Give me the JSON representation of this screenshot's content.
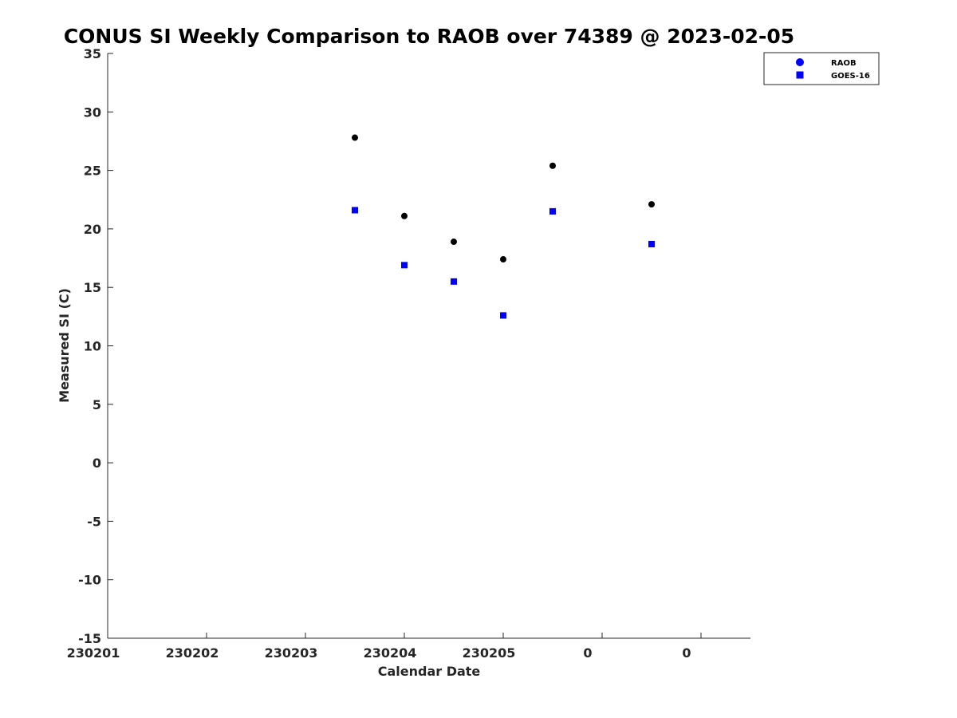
{
  "chart_data": {
    "type": "scatter",
    "title": "CONUS SI Weekly Comparison to RAOB over 74389 @ 2023-02-05",
    "xlabel": "Calendar Date",
    "ylabel": "Measured SI (C)",
    "x_tick_labels": [
      "230201",
      "230202",
      "230203",
      "230204",
      "230205",
      "0",
      "0"
    ],
    "x_tick_positions": [
      0,
      1,
      2,
      3,
      4,
      5,
      6
    ],
    "xlim": [
      0,
      6.5
    ],
    "ylim": [
      -15,
      35
    ],
    "y_ticks": [
      -15,
      -10,
      -5,
      0,
      5,
      10,
      15,
      20,
      25,
      30,
      35
    ],
    "grid": false,
    "legend_position": "top-right",
    "series": [
      {
        "name": "RAOB",
        "marker": "circle",
        "color": "#000000",
        "legend_color": "#0000ff",
        "x": [
          2.5,
          3.0,
          3.5,
          4.0,
          4.5,
          5.5
        ],
        "y": [
          27.8,
          21.1,
          18.9,
          17.4,
          25.4,
          22.1
        ]
      },
      {
        "name": "GOES-16",
        "marker": "square",
        "color": "#0000ff",
        "legend_color": "#0000ff",
        "x": [
          2.5,
          3.0,
          3.5,
          4.0,
          4.5,
          5.5
        ],
        "y": [
          21.6,
          16.9,
          15.5,
          12.6,
          21.5,
          18.7
        ]
      }
    ]
  }
}
